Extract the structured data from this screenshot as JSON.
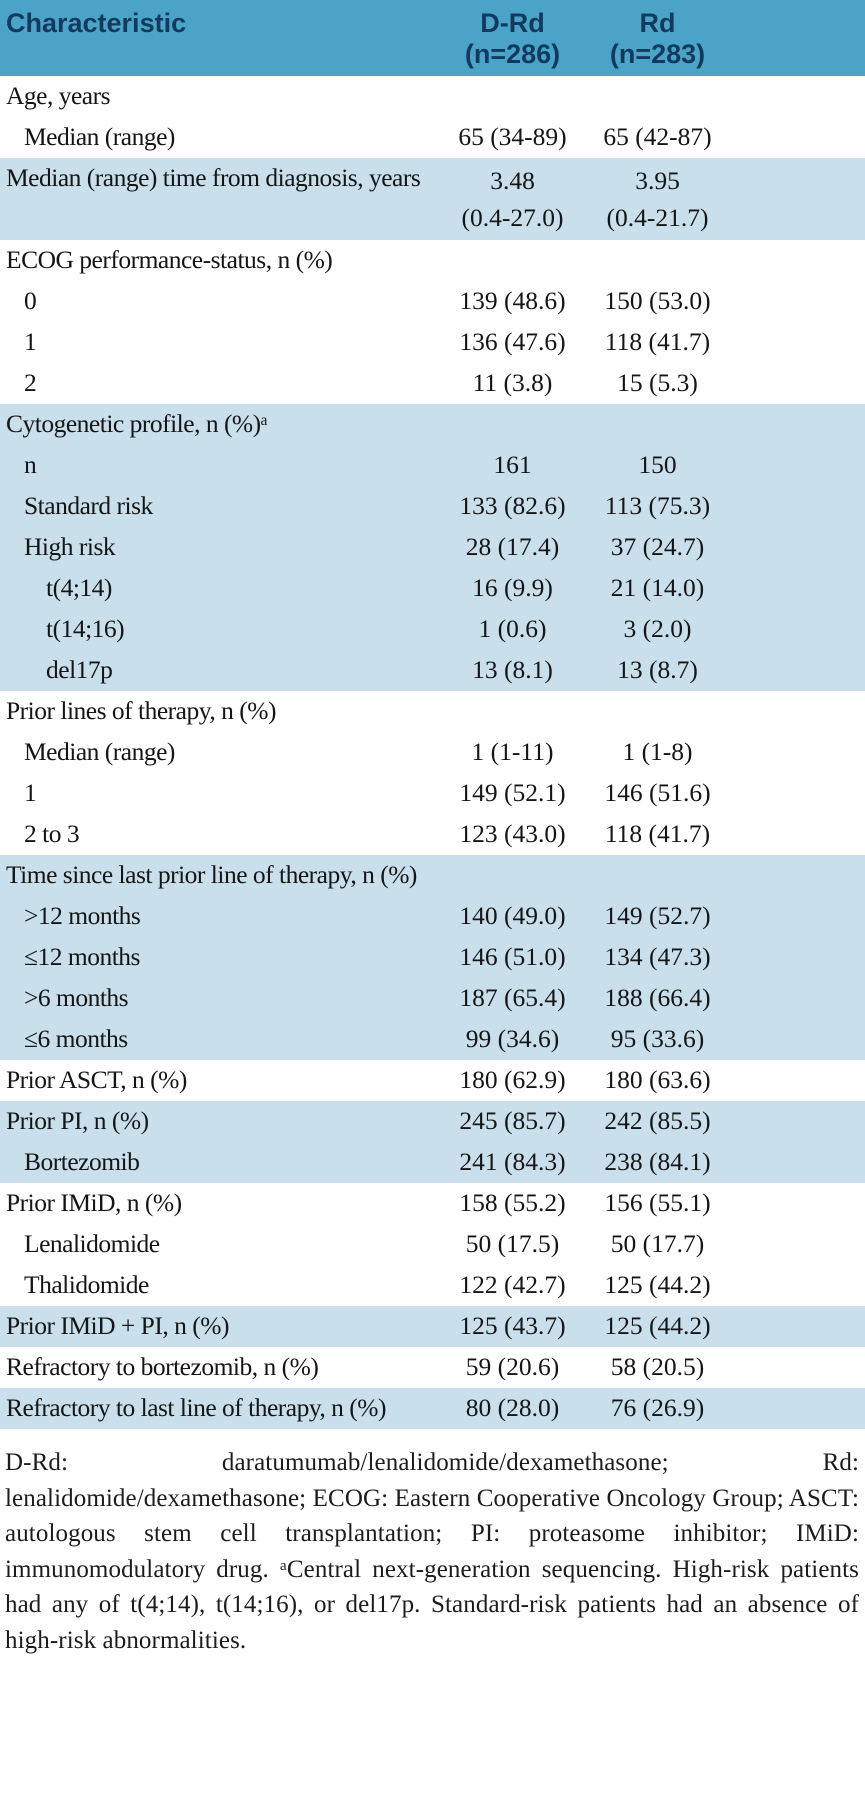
{
  "colors": {
    "header_bg": "#4ba4c8",
    "header_text": "#123a5e",
    "shaded_row_bg": "#c9e0ec",
    "body_text": "#151515"
  },
  "table": {
    "header": {
      "characteristic": "Characteristic",
      "d_rd": "D-Rd\n(n=286)",
      "rd": "Rd\n(n=283)"
    },
    "rows": [
      {
        "label": "Age, years",
        "indent": 0,
        "d_rd": "",
        "rd": "",
        "shaded": false
      },
      {
        "label": "Median (range)",
        "indent": 1,
        "d_rd": "65 (34-89)",
        "rd": "65 (42-87)",
        "shaded": false
      },
      {
        "label": "Median (range) time from diagnosis, years",
        "indent": 0,
        "d_rd": "3.48\n(0.4-27.0)",
        "rd": "3.95\n(0.4-21.7)",
        "shaded": true,
        "tall": true
      },
      {
        "label": "ECOG performance-status, n (%)",
        "indent": 0,
        "d_rd": "",
        "rd": "",
        "shaded": false
      },
      {
        "label": "0",
        "indent": 1,
        "d_rd": "139 (48.6)",
        "rd": "150 (53.0)",
        "shaded": false
      },
      {
        "label": "1",
        "indent": 1,
        "d_rd": "136 (47.6)",
        "rd": "118 (41.7)",
        "shaded": false
      },
      {
        "label": "2",
        "indent": 1,
        "d_rd": "11 (3.8)",
        "rd": "15 (5.3)",
        "shaded": false
      },
      {
        "label": "Cytogenetic profile, n (%)ᵃ",
        "indent": 0,
        "d_rd": "",
        "rd": "",
        "shaded": true
      },
      {
        "label": "n",
        "indent": 1,
        "d_rd": "161",
        "rd": "150",
        "shaded": true
      },
      {
        "label": "Standard risk",
        "indent": 1,
        "d_rd": "133 (82.6)",
        "rd": "113 (75.3)",
        "shaded": true
      },
      {
        "label": "High risk",
        "indent": 1,
        "d_rd": "28 (17.4)",
        "rd": "37 (24.7)",
        "shaded": true
      },
      {
        "label": "t(4;14)",
        "indent": 2,
        "d_rd": "16 (9.9)",
        "rd": "21 (14.0)",
        "shaded": true
      },
      {
        "label": "t(14;16)",
        "indent": 2,
        "d_rd": "1 (0.6)",
        "rd": "3 (2.0)",
        "shaded": true
      },
      {
        "label": "del17p",
        "indent": 2,
        "d_rd": "13 (8.1)",
        "rd": "13 (8.7)",
        "shaded": true
      },
      {
        "label": "Prior lines of therapy, n (%)",
        "indent": 0,
        "d_rd": "",
        "rd": "",
        "shaded": false
      },
      {
        "label": "Median (range)",
        "indent": 1,
        "d_rd": "1 (1-11)",
        "rd": "1 (1-8)",
        "shaded": false
      },
      {
        "label": "1",
        "indent": 1,
        "d_rd": "149 (52.1)",
        "rd": "146 (51.6)",
        "shaded": false
      },
      {
        "label": "2 to 3",
        "indent": 1,
        "d_rd": "123 (43.0)",
        "rd": "118 (41.7)",
        "shaded": false
      },
      {
        "label": "Time since last prior line of therapy, n (%)",
        "indent": 0,
        "d_rd": "",
        "rd": "",
        "shaded": true
      },
      {
        "label": ">12 months",
        "indent": 1,
        "d_rd": "140 (49.0)",
        "rd": "149 (52.7)",
        "shaded": true
      },
      {
        "label": "≤12 months",
        "indent": 1,
        "d_rd": "146 (51.0)",
        "rd": "134 (47.3)",
        "shaded": true
      },
      {
        "label": ">6 months",
        "indent": 1,
        "d_rd": "187 (65.4)",
        "rd": "188 (66.4)",
        "shaded": true
      },
      {
        "label": "≤6 months",
        "indent": 1,
        "d_rd": "99 (34.6)",
        "rd": "95 (33.6)",
        "shaded": true
      },
      {
        "label": "Prior ASCT, n (%)",
        "indent": 0,
        "d_rd": "180 (62.9)",
        "rd": "180 (63.6)",
        "shaded": false
      },
      {
        "label": "Prior PI, n (%)",
        "indent": 0,
        "d_rd": "245 (85.7)",
        "rd": "242 (85.5)",
        "shaded": true
      },
      {
        "label": "Bortezomib",
        "indent": 1,
        "d_rd": "241 (84.3)",
        "rd": "238 (84.1)",
        "shaded": true
      },
      {
        "label": "Prior IMiD, n (%)",
        "indent": 0,
        "d_rd": "158 (55.2)",
        "rd": "156 (55.1)",
        "shaded": false
      },
      {
        "label": "Lenalidomide",
        "indent": 1,
        "d_rd": "50 (17.5)",
        "rd": "50 (17.7)",
        "shaded": false
      },
      {
        "label": "Thalidomide",
        "indent": 1,
        "d_rd": "122 (42.7)",
        "rd": "125 (44.2)",
        "shaded": false
      },
      {
        "label": "Prior IMiD + PI, n (%)",
        "indent": 0,
        "d_rd": "125 (43.7)",
        "rd": "125 (44.2)",
        "shaded": true
      },
      {
        "label": "Refractory to bortezomib, n (%)",
        "indent": 0,
        "d_rd": "59 (20.6)",
        "rd": "58 (20.5)",
        "shaded": false
      },
      {
        "label": "Refractory to last line of therapy, n (%)",
        "indent": 0,
        "d_rd": "80 (28.0)",
        "rd": "76 (26.9)",
        "shaded": true
      }
    ],
    "footnote": "D-Rd: daratumumab/lenalidomide/dexamethasone; Rd: lenalidomide/dexamethasone; ECOG: Eastern Cooperative Oncology Group; ASCT: autologous stem cell transplantation; PI: proteasome inhibitor; IMiD: immunomodulatory drug. ᵃCentral next-generation sequencing. High-risk patients had any of t(4;14), t(14;16), or del17p. Standard-risk patients had an absence of high-risk abnormalities."
  }
}
